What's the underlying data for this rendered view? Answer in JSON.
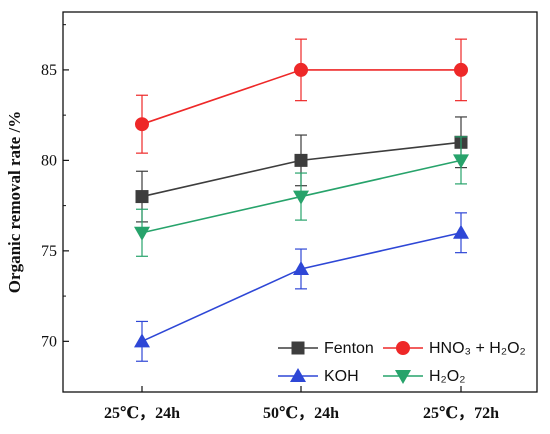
{
  "chart_data": {
    "type": "line",
    "categories": [
      "25℃，24h",
      "50℃，24h",
      "25℃，72h"
    ],
    "ylabel": "Organic removal rate /%",
    "xlabel": "",
    "ylim": [
      67.2,
      88.2
    ],
    "yticks": [
      70,
      75,
      80,
      85
    ],
    "grid": false,
    "legend_position": "bottom-right",
    "series": [
      {
        "name": "Fenton",
        "color": "#3d3d3d",
        "marker": "square",
        "values": [
          78,
          80,
          81
        ],
        "errors": [
          1.4,
          1.4,
          1.4
        ]
      },
      {
        "name": "HNO₃ + H₂O₂",
        "color": "#ee2828",
        "marker": "circle",
        "values": [
          82,
          85,
          85
        ],
        "errors": [
          1.6,
          1.7,
          1.7
        ]
      },
      {
        "name": "KOH",
        "color": "#2e47d6",
        "marker": "triangle-up",
        "values": [
          70,
          74,
          76
        ],
        "errors": [
          1.1,
          1.1,
          1.1
        ]
      },
      {
        "name": "H₂O₂",
        "color": "#27a36b",
        "marker": "triangle-down",
        "values": [
          76,
          78,
          80
        ],
        "errors": [
          1.3,
          1.3,
          1.3
        ]
      }
    ]
  }
}
